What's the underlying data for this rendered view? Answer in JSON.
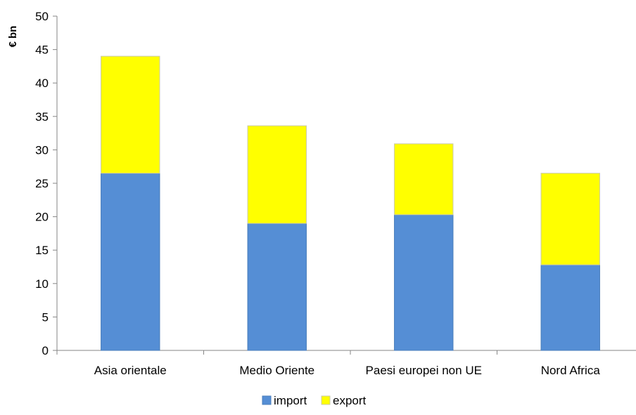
{
  "chart_data": {
    "type": "bar",
    "stacked": true,
    "ylabel": "€ bn",
    "xlabel": "",
    "ylim": [
      0,
      50
    ],
    "yticks": [
      0,
      5,
      10,
      15,
      20,
      25,
      30,
      35,
      40,
      45,
      50
    ],
    "categories": [
      "Asia orientale",
      "Medio Oriente",
      "Paesi europei non UE",
      "Nord Africa"
    ],
    "series": [
      {
        "name": "import",
        "color": "#558ED5",
        "values": [
          26.5,
          19.0,
          20.3,
          12.8
        ]
      },
      {
        "name": "export",
        "color": "#FFFF00",
        "values": [
          17.5,
          14.6,
          10.6,
          13.7
        ]
      }
    ],
    "grid": false,
    "legend": "bottom"
  }
}
